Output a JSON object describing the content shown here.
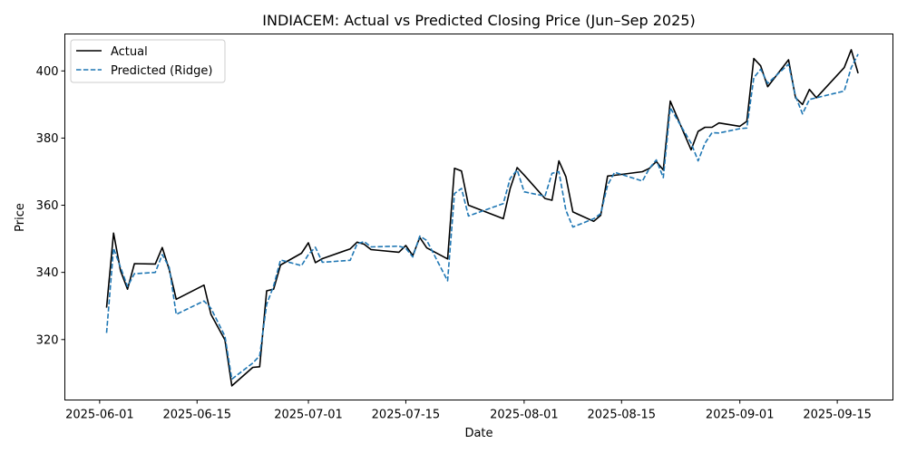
{
  "chart_data": {
    "type": "line",
    "title": "INDIACEM: Actual vs Predicted Closing Price (Jun–Sep 2025)",
    "xlabel": "Date",
    "ylabel": "Price",
    "x_range": [
      "2025-05-27",
      "2025-09-23"
    ],
    "ylim": [
      302,
      411
    ],
    "x_ticks": [
      "2025-06-01",
      "2025-06-15",
      "2025-07-01",
      "2025-07-15",
      "2025-08-01",
      "2025-08-15",
      "2025-09-01",
      "2025-09-15"
    ],
    "y_ticks": [
      320,
      340,
      360,
      380,
      400
    ],
    "grid": false,
    "legend_position": "upper left",
    "x": [
      "2025-06-02",
      "2025-06-03",
      "2025-06-04",
      "2025-06-05",
      "2025-06-06",
      "2025-06-09",
      "2025-06-10",
      "2025-06-11",
      "2025-06-12",
      "2025-06-16",
      "2025-06-17",
      "2025-06-19",
      "2025-06-20",
      "2025-06-23",
      "2025-06-24",
      "2025-06-25",
      "2025-06-26",
      "2025-06-27",
      "2025-06-30",
      "2025-07-01",
      "2025-07-02",
      "2025-07-03",
      "2025-07-07",
      "2025-07-08",
      "2025-07-09",
      "2025-07-10",
      "2025-07-14",
      "2025-07-15",
      "2025-07-16",
      "2025-07-17",
      "2025-07-18",
      "2025-07-21",
      "2025-07-22",
      "2025-07-23",
      "2025-07-24",
      "2025-07-29",
      "2025-07-30",
      "2025-07-31",
      "2025-08-01",
      "2025-08-04",
      "2025-08-05",
      "2025-08-06",
      "2025-08-07",
      "2025-08-08",
      "2025-08-11",
      "2025-08-12",
      "2025-08-13",
      "2025-08-14",
      "2025-08-18",
      "2025-08-19",
      "2025-08-20",
      "2025-08-21",
      "2025-08-22",
      "2025-08-25",
      "2025-08-26",
      "2025-08-27",
      "2025-08-28",
      "2025-08-29",
      "2025-09-01",
      "2025-09-02",
      "2025-09-03",
      "2025-09-04",
      "2025-09-05",
      "2025-09-08",
      "2025-09-09",
      "2025-09-10",
      "2025-09-11",
      "2025-09-12",
      "2025-09-16",
      "2025-09-17",
      "2025-09-18"
    ],
    "series": [
      {
        "name": "Actual",
        "color": "#000000",
        "style": "solid",
        "values": [
          329.5,
          351.7,
          340.5,
          335.0,
          342.6,
          342.5,
          347.4,
          340.8,
          332.0,
          336.2,
          327.5,
          319.9,
          306.2,
          311.7,
          311.9,
          334.5,
          335.0,
          342.2,
          345.7,
          348.8,
          342.9,
          344.1,
          347.0,
          349.0,
          348.4,
          346.8,
          346.0,
          348.0,
          345.0,
          350.4,
          347.3,
          344.0,
          371.0,
          370.2,
          360.0,
          356.0,
          365.0,
          371.2,
          369.0,
          362.0,
          361.5,
          373.2,
          368.5,
          358.0,
          355.2,
          357.0,
          368.7,
          368.9,
          370.0,
          371.0,
          373.0,
          370.5,
          391.0,
          376.5,
          382.0,
          383.2,
          383.2,
          384.5,
          383.5,
          385.0,
          403.7,
          401.5,
          395.3,
          403.3,
          392.0,
          390.0,
          394.5,
          392.0,
          401.0,
          406.3,
          399.3
        ]
      },
      {
        "name": "Predicted (Ridge)",
        "color": "#1f77b4",
        "style": "dashed",
        "values": [
          322.0,
          347.2,
          341.5,
          335.8,
          339.6,
          340.0,
          345.3,
          341.5,
          327.5,
          331.5,
          329.3,
          321.0,
          308.2,
          313.0,
          315.2,
          330.5,
          336.0,
          343.7,
          342.0,
          345.3,
          347.5,
          343.0,
          343.6,
          348.5,
          349.2,
          347.6,
          347.8,
          347.2,
          344.6,
          350.8,
          349.5,
          337.5,
          363.5,
          365.0,
          356.8,
          360.5,
          368.0,
          370.5,
          364.0,
          362.7,
          369.5,
          370.0,
          358.5,
          353.5,
          356.0,
          357.5,
          366.0,
          369.8,
          367.2,
          371.0,
          373.5,
          368.2,
          389.0,
          378.5,
          373.2,
          378.5,
          381.6,
          381.5,
          382.8,
          383.0,
          398.0,
          400.5,
          396.3,
          402.0,
          392.5,
          387.2,
          391.5,
          392.0,
          394.0,
          401.0,
          405.0
        ]
      }
    ]
  }
}
